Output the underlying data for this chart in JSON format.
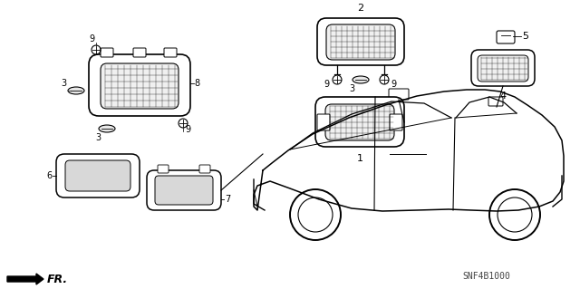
{
  "bg_color": "#ffffff",
  "diagram_code": "SNF4B1000",
  "fr_label": "FR.",
  "line_color": "#000000",
  "text_color": "#000000",
  "figsize": [
    6.4,
    3.19
  ],
  "dpi": 100,
  "part_labels": [
    "1",
    "2",
    "3",
    "4",
    "5",
    "6",
    "7",
    "8",
    "9"
  ],
  "gray_fill": "#cccccc",
  "dark_fill": "#888888"
}
